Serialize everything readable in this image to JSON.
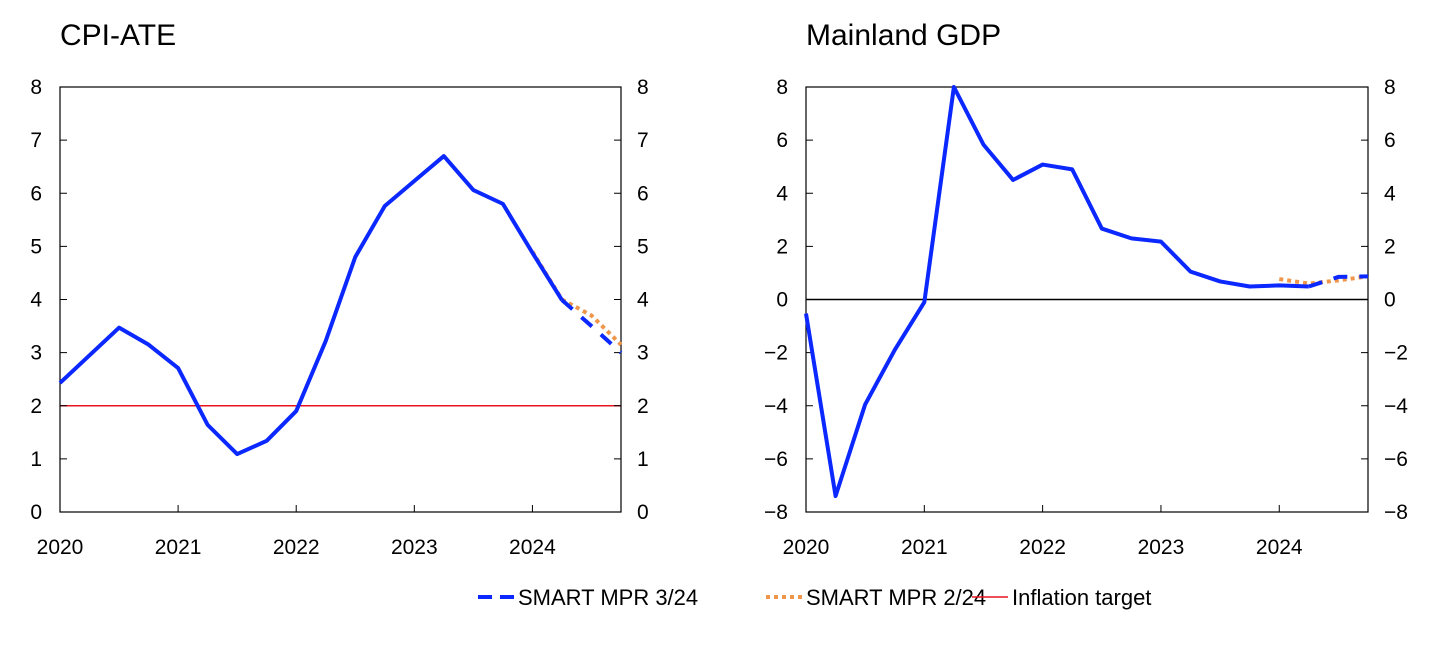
{
  "colors": {
    "smart_3_24": "#0a28ff",
    "smart_2_24": "#f0964b",
    "inflation_target": "#e8141e",
    "axis": "#000000"
  },
  "legend": {
    "placement": "bottom-center",
    "items": [
      {
        "label": "SMART MPR 3/24",
        "style": "dashed",
        "color": "#0a28ff"
      },
      {
        "label": "SMART MPR 2/24",
        "style": "dotted",
        "color": "#f0964b"
      },
      {
        "label": "Inflation target",
        "style": "solid",
        "color": "#e8141e"
      }
    ]
  },
  "chart_data": [
    {
      "type": "line",
      "title": "CPI-ATE",
      "xlabel": "",
      "ylabel": "",
      "x_ticks": [
        "2020",
        "2021",
        "2022",
        "2023",
        "2024"
      ],
      "y_ticks": [
        "0",
        "1",
        "2",
        "3",
        "4",
        "5",
        "6",
        "7",
        "8"
      ],
      "xlim": [
        2020.0,
        2024.75
      ],
      "ylim": [
        0,
        8
      ],
      "grid": false,
      "x": [
        "2020Q1",
        "2020Q2",
        "2020Q3",
        "2020Q4",
        "2021Q1",
        "2021Q2",
        "2021Q3",
        "2021Q4",
        "2022Q1",
        "2022Q2",
        "2022Q3",
        "2022Q4",
        "2023Q1",
        "2023Q2",
        "2023Q3",
        "2023Q4",
        "2024Q1",
        "2024Q2",
        "2024Q3",
        "2024Q4"
      ],
      "series": [
        {
          "name": "SMART MPR 3/24",
          "values": [
            2.43,
            2.95,
            3.47,
            3.15,
            2.71,
            1.64,
            1.09,
            1.34,
            1.9,
            3.22,
            4.8,
            5.76,
            6.23,
            6.7,
            6.06,
            5.8,
            4.88,
            3.99,
            3.5,
            3.0
          ],
          "forecast_from": "2024Q2"
        },
        {
          "name": "SMART MPR 2/24",
          "values": [
            null,
            null,
            null,
            null,
            null,
            null,
            null,
            null,
            null,
            null,
            null,
            null,
            null,
            null,
            null,
            null,
            4.9,
            4.0,
            3.7,
            3.15
          ]
        }
      ],
      "reference_lines": [
        {
          "name": "Inflation target",
          "y": 2
        }
      ]
    },
    {
      "type": "line",
      "title": "Mainland GDP",
      "xlabel": "",
      "ylabel": "",
      "x_ticks": [
        "2020",
        "2021",
        "2022",
        "2023",
        "2024"
      ],
      "y_ticks": [
        "−8",
        "−6",
        "−4",
        "−2",
        "0",
        "2",
        "4",
        "6",
        "8"
      ],
      "xlim": [
        2020.0,
        2024.75
      ],
      "ylim": [
        -8,
        8
      ],
      "grid": false,
      "x": [
        "2020Q1",
        "2020Q2",
        "2020Q3",
        "2020Q4",
        "2021Q1",
        "2021Q2",
        "2021Q3",
        "2021Q4",
        "2022Q1",
        "2022Q2",
        "2022Q3",
        "2022Q4",
        "2023Q1",
        "2023Q2",
        "2023Q3",
        "2023Q4",
        "2024Q1",
        "2024Q2",
        "2024Q3",
        "2024Q4"
      ],
      "series": [
        {
          "name": "SMART MPR 3/24",
          "values": [
            -0.53,
            -7.4,
            -3.95,
            -1.9,
            -0.1,
            8.0,
            5.83,
            4.5,
            5.08,
            4.9,
            2.67,
            2.3,
            2.18,
            1.05,
            0.68,
            0.49,
            0.53,
            0.49,
            0.85,
            0.87
          ],
          "forecast_from": "2024Q2"
        },
        {
          "name": "SMART MPR 2/24",
          "values": [
            null,
            null,
            null,
            null,
            null,
            null,
            null,
            null,
            null,
            null,
            null,
            null,
            null,
            null,
            null,
            null,
            0.77,
            0.6,
            0.72,
            0.87
          ]
        }
      ],
      "reference_lines": [
        {
          "name": "zero",
          "y": 0
        }
      ]
    }
  ]
}
